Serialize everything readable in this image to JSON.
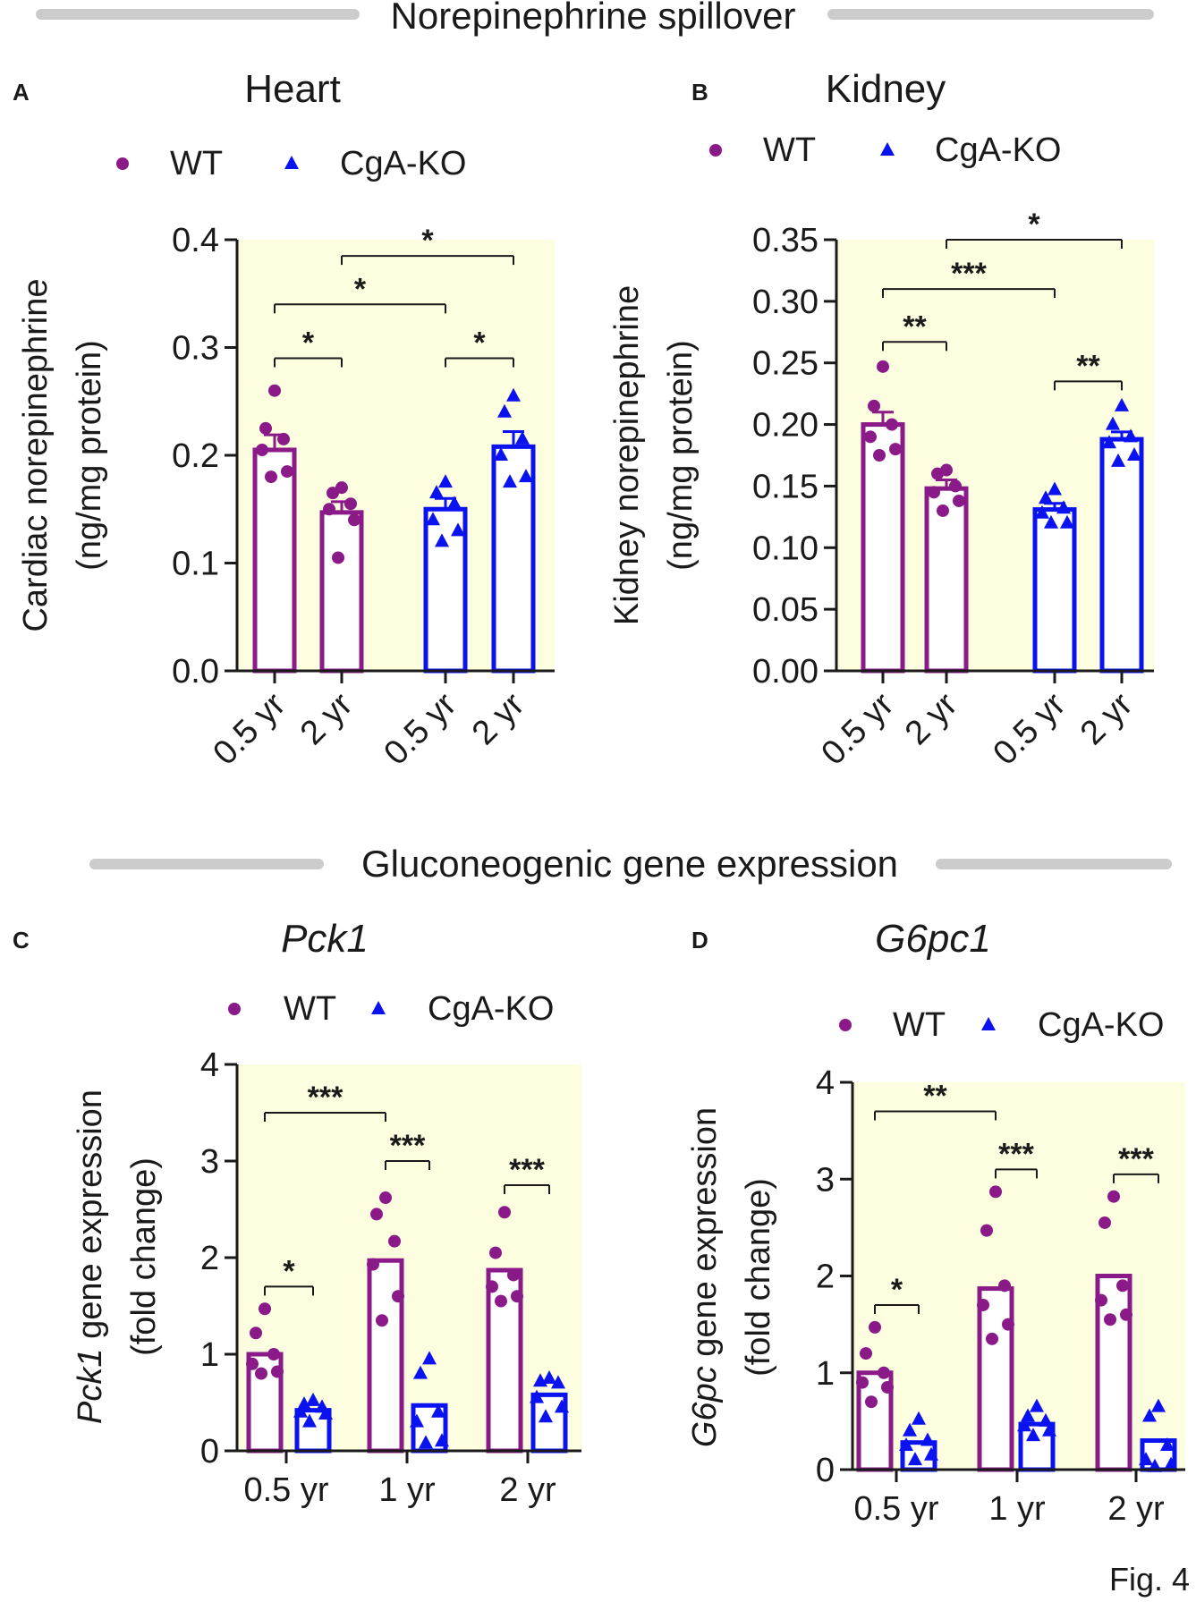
{
  "section_titles": {
    "top": "Norepinephrine spillover",
    "bottom": "Gluconeogenic gene expression"
  },
  "figure_label": "Fig. 4",
  "colors": {
    "wt": "#8b1a89",
    "ko": "#0a12f0",
    "plot_bg": "#fdfde0",
    "divider": "#cccccc"
  },
  "legend": {
    "wt": "WT",
    "ko": "CgA-KO"
  },
  "chart_data": [
    {
      "id": "A",
      "letter": "A",
      "type": "bar",
      "title": "Heart",
      "title_italic": false,
      "ylabel": [
        "Cardiac norepinephrine",
        "(ng/mg protein)"
      ],
      "ylim": [
        0,
        0.4
      ],
      "yticks": [
        "0.0",
        "0.1",
        "0.2",
        "0.3",
        "0.4"
      ],
      "categories": [
        "0.5 yr",
        "2 yr",
        "0.5 yr",
        "2 yr"
      ],
      "bars": [
        {
          "group": "WT",
          "category": "0.5 yr",
          "mean": 0.205,
          "sem": 0.014,
          "points": [
            0.26,
            0.225,
            0.215,
            0.205,
            0.185,
            0.18
          ]
        },
        {
          "group": "WT",
          "category": "2 yr",
          "mean": 0.147,
          "sem": 0.01,
          "points": [
            0.17,
            0.165,
            0.155,
            0.15,
            0.14,
            0.105
          ]
        },
        {
          "group": "CgA-KO",
          "category": "0.5 yr",
          "mean": 0.15,
          "sem": 0.01,
          "points": [
            0.175,
            0.165,
            0.155,
            0.14,
            0.13,
            0.12
          ]
        },
        {
          "group": "CgA-KO",
          "category": "2 yr",
          "mean": 0.208,
          "sem": 0.014,
          "points": [
            0.255,
            0.24,
            0.215,
            0.2,
            0.18,
            0.175
          ]
        }
      ],
      "comparisons": [
        {
          "from": 0,
          "to": 1,
          "y": 0.29,
          "label": "*"
        },
        {
          "from": 0,
          "to": 2,
          "y": 0.34,
          "label": "*"
        },
        {
          "from": 1,
          "to": 3,
          "y": 0.385,
          "label": "*"
        },
        {
          "from": 2,
          "to": 3,
          "y": 0.29,
          "label": "*"
        }
      ]
    },
    {
      "id": "B",
      "letter": "B",
      "type": "bar",
      "title": "Kidney",
      "title_italic": false,
      "ylabel": [
        "Kidney norepinephrine",
        "(ng/mg protein)"
      ],
      "ylim": [
        0,
        0.35
      ],
      "yticks": [
        "0.00",
        "0.05",
        "0.10",
        "0.15",
        "0.20",
        "0.25",
        "0.30",
        "0.35"
      ],
      "categories": [
        "0.5 yr",
        "2 yr",
        "0.5 yr",
        "2 yr"
      ],
      "bars": [
        {
          "group": "WT",
          "category": "0.5 yr",
          "mean": 0.2,
          "sem": 0.01,
          "points": [
            0.247,
            0.215,
            0.2,
            0.19,
            0.18,
            0.175
          ]
        },
        {
          "group": "WT",
          "category": "2 yr",
          "mean": 0.148,
          "sem": 0.007,
          "points": [
            0.163,
            0.16,
            0.15,
            0.145,
            0.138,
            0.13
          ]
        },
        {
          "group": "CgA-KO",
          "category": "0.5 yr",
          "mean": 0.131,
          "sem": 0.005,
          "points": [
            0.147,
            0.14,
            0.132,
            0.128,
            0.12,
            0.12
          ]
        },
        {
          "group": "CgA-KO",
          "category": "2 yr",
          "mean": 0.188,
          "sem": 0.006,
          "points": [
            0.215,
            0.2,
            0.19,
            0.185,
            0.175,
            0.17
          ]
        }
      ],
      "comparisons": [
        {
          "from": 0,
          "to": 1,
          "y": 0.267,
          "label": "**"
        },
        {
          "from": 0,
          "to": 2,
          "y": 0.31,
          "label": "***"
        },
        {
          "from": 1,
          "to": 3,
          "y": 0.35,
          "label": "*"
        },
        {
          "from": 2,
          "to": 3,
          "y": 0.235,
          "label": "**"
        }
      ]
    },
    {
      "id": "C",
      "letter": "C",
      "type": "bar",
      "title": "Pck1",
      "title_italic": true,
      "ylabel_italic_part": "Pck1",
      "ylabel_rest": " gene expression",
      "ylabel_second": "(fold change)",
      "ylim": [
        0,
        4
      ],
      "yticks": [
        "0",
        "1",
        "2",
        "3",
        "4"
      ],
      "categories": [
        "0.5 yr",
        "1 yr",
        "2 yr"
      ],
      "bars": [
        {
          "group": "WT",
          "category": "0.5 yr",
          "mean": 1.0,
          "points": [
            1.47,
            1.22,
            1.0,
            0.9,
            0.82,
            0.8
          ]
        },
        {
          "group": "CgA-KO",
          "category": "0.5 yr",
          "mean": 0.42,
          "points": [
            0.52,
            0.48,
            0.45,
            0.4,
            0.38,
            0.3
          ]
        },
        {
          "group": "WT",
          "category": "1 yr",
          "mean": 1.97,
          "points": [
            2.62,
            2.45,
            2.17,
            1.93,
            1.6,
            1.35
          ]
        },
        {
          "group": "CgA-KO",
          "category": "1 yr",
          "mean": 0.47,
          "points": [
            0.95,
            0.8,
            0.4,
            0.3,
            0.1,
            0.08
          ]
        },
        {
          "group": "WT",
          "category": "2 yr",
          "mean": 1.87,
          "points": [
            2.47,
            2.05,
            1.82,
            1.7,
            1.6,
            1.55
          ]
        },
        {
          "group": "CgA-KO",
          "category": "2 yr",
          "mean": 0.58,
          "points": [
            0.75,
            0.72,
            0.7,
            0.55,
            0.45,
            0.35
          ]
        }
      ],
      "comparisons": [
        {
          "from": 0,
          "to": 1,
          "y": 1.7,
          "label": "*"
        },
        {
          "from": 0,
          "to": 2,
          "y": 3.5,
          "label": "***"
        },
        {
          "from": 2,
          "to": 3,
          "y": 3.0,
          "label": "***"
        },
        {
          "from": 4,
          "to": 5,
          "y": 2.75,
          "label": "***"
        }
      ]
    },
    {
      "id": "D",
      "letter": "D",
      "type": "bar",
      "title": "G6pc1",
      "title_italic": true,
      "ylabel_italic_part": "G6pc",
      "ylabel_rest": " gene expression",
      "ylabel_second": "(fold change)",
      "ylim": [
        0,
        4
      ],
      "yticks": [
        "0",
        "1",
        "2",
        "3",
        "4"
      ],
      "categories": [
        "0.5 yr",
        "1 yr",
        "2 yr"
      ],
      "bars": [
        {
          "group": "WT",
          "category": "0.5 yr",
          "mean": 1.0,
          "points": [
            1.47,
            1.2,
            1.0,
            0.9,
            0.85,
            0.7
          ]
        },
        {
          "group": "CgA-KO",
          "category": "0.5 yr",
          "mean": 0.28,
          "points": [
            0.52,
            0.4,
            0.3,
            0.25,
            0.15,
            0.1
          ]
        },
        {
          "group": "WT",
          "category": "1 yr",
          "mean": 1.87,
          "points": [
            2.87,
            2.47,
            1.9,
            1.7,
            1.5,
            1.35
          ]
        },
        {
          "group": "CgA-KO",
          "category": "1 yr",
          "mean": 0.47,
          "points": [
            0.65,
            0.55,
            0.5,
            0.45,
            0.4,
            0.35
          ]
        },
        {
          "group": "WT",
          "category": "2 yr",
          "mean": 2.0,
          "points": [
            2.82,
            2.55,
            1.9,
            1.75,
            1.6,
            1.55
          ]
        },
        {
          "group": "CgA-KO",
          "category": "2 yr",
          "mean": 0.3,
          "points": [
            0.65,
            0.55,
            0.25,
            0.1,
            0.05,
            0.03
          ]
        }
      ],
      "comparisons": [
        {
          "from": 0,
          "to": 1,
          "y": 1.7,
          "label": "*"
        },
        {
          "from": 0,
          "to": 2,
          "y": 3.7,
          "label": "**"
        },
        {
          "from": 2,
          "to": 3,
          "y": 3.1,
          "label": "***"
        },
        {
          "from": 4,
          "to": 5,
          "y": 3.05,
          "label": "***"
        }
      ]
    }
  ]
}
